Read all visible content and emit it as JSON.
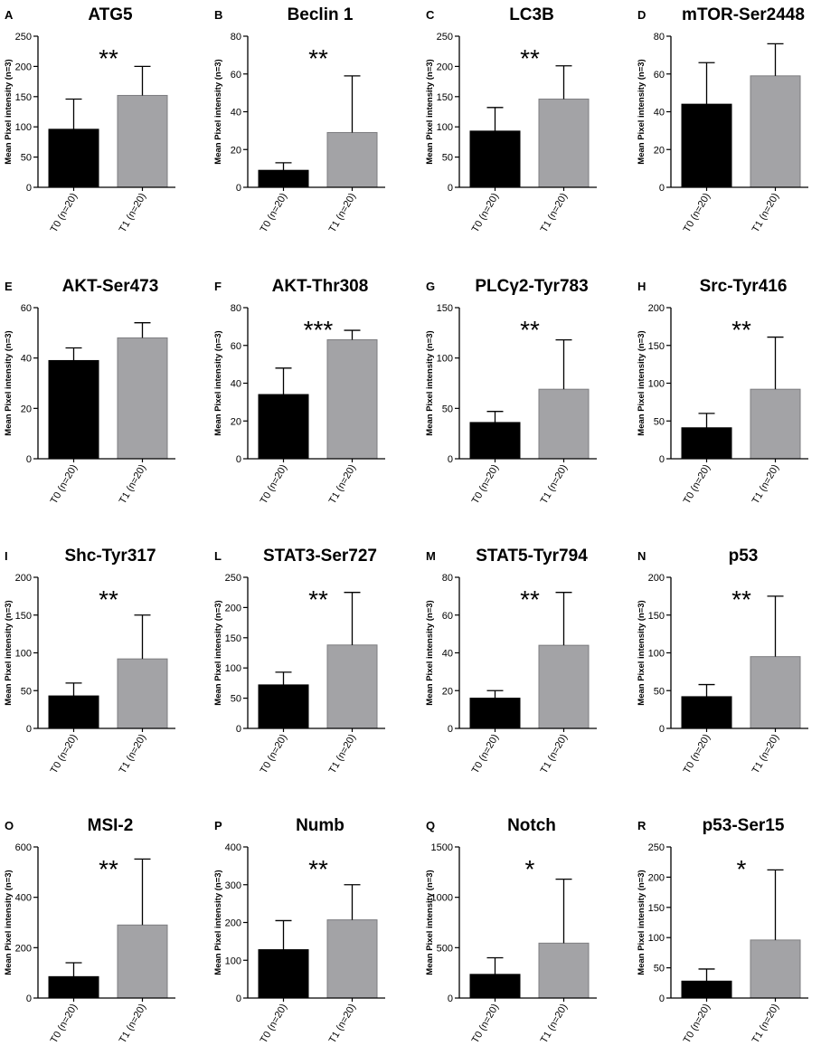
{
  "figure": {
    "panel_count": 16,
    "colors": {
      "T0": "#000000",
      "T1": "#a3a3a6",
      "T1_edge": "#7d7d80"
    }
  },
  "chart_data": [
    {
      "letter": "A",
      "title": "ATG5",
      "type": "bar",
      "ylabel": "Mean Pixel intensity (n=3)",
      "categories": [
        "T0 (n=20)",
        "T1 (n=20)"
      ],
      "values": [
        96,
        152
      ],
      "errors": [
        50,
        48
      ],
      "ylim": [
        0,
        250
      ],
      "yticks": [
        0,
        50,
        100,
        150,
        200,
        250
      ],
      "significance": "**"
    },
    {
      "letter": "B",
      "title": "Beclin 1",
      "type": "bar",
      "ylabel": "Mean Pixel intensity (n=3)",
      "categories": [
        "T0 (n=20)",
        "T1 (n=20)"
      ],
      "values": [
        9,
        29
      ],
      "errors": [
        4,
        30
      ],
      "ylim": [
        0,
        80
      ],
      "yticks": [
        0,
        20,
        40,
        60,
        80
      ],
      "significance": "**"
    },
    {
      "letter": "C",
      "title": "LC3B",
      "type": "bar",
      "ylabel": "Mean Pixel intensity (n=3)",
      "categories": [
        "T0 (n=20)",
        "T1 (n=20)"
      ],
      "values": [
        93,
        146
      ],
      "errors": [
        39,
        55
      ],
      "ylim": [
        0,
        250
      ],
      "yticks": [
        0,
        50,
        100,
        150,
        200,
        250
      ],
      "significance": "**"
    },
    {
      "letter": "D",
      "title": "mTOR-Ser2448",
      "type": "bar",
      "ylabel": "Mean Pixel intensity (n=3)",
      "categories": [
        "T0 (n=20)",
        "T1 (n=20)"
      ],
      "values": [
        44,
        59
      ],
      "errors": [
        22,
        17
      ],
      "ylim": [
        0,
        80
      ],
      "yticks": [
        0,
        20,
        40,
        60,
        80
      ],
      "significance": ""
    },
    {
      "letter": "E",
      "title": "AKT-Ser473",
      "type": "bar",
      "ylabel": "Mean Pixel intensity (n=3)",
      "categories": [
        "T0 (n=20)",
        "T1 (n=20)"
      ],
      "values": [
        39,
        48
      ],
      "errors": [
        5,
        6
      ],
      "ylim": [
        0,
        60
      ],
      "yticks": [
        0,
        20,
        40,
        60
      ],
      "significance": ""
    },
    {
      "letter": "F",
      "title": "AKT-Thr308",
      "type": "bar",
      "ylabel": "Mean Pixel intensity (n=3)",
      "categories": [
        "T0 (n=20)",
        "T1 (n=20)"
      ],
      "values": [
        34,
        63
      ],
      "errors": [
        14,
        5
      ],
      "ylim": [
        0,
        80
      ],
      "yticks": [
        0,
        20,
        40,
        60,
        80
      ],
      "significance": "***"
    },
    {
      "letter": "G",
      "title": "PLCγ2-Tyr783",
      "type": "bar",
      "ylabel": "Mean Pixel intensity (n=3)",
      "categories": [
        "T0 (n=20)",
        "T1 (n=20)"
      ],
      "values": [
        36,
        69
      ],
      "errors": [
        11,
        49
      ],
      "ylim": [
        0,
        150
      ],
      "yticks": [
        0,
        50,
        100,
        150
      ],
      "significance": "**"
    },
    {
      "letter": "H",
      "title": "Src-Tyr416",
      "type": "bar",
      "ylabel": "Mean Pixel intensity (n=3)",
      "categories": [
        "T0 (n=20)",
        "T1 (n=20)"
      ],
      "values": [
        41,
        92
      ],
      "errors": [
        19,
        69
      ],
      "ylim": [
        0,
        200
      ],
      "yticks": [
        0,
        50,
        100,
        150,
        200
      ],
      "significance": "**"
    },
    {
      "letter": "I",
      "title": "Shc-Tyr317",
      "type": "bar",
      "ylabel": "Mean Pixel intensity (n=3)",
      "categories": [
        "T0 (n=20)",
        "T1 (n=20)"
      ],
      "values": [
        43,
        92
      ],
      "errors": [
        17,
        58
      ],
      "ylim": [
        0,
        200
      ],
      "yticks": [
        0,
        50,
        100,
        150,
        200
      ],
      "significance": "**"
    },
    {
      "letter": "L",
      "title": "STAT3-Ser727",
      "type": "bar",
      "ylabel": "Mean Pixel intensity (n=3)",
      "categories": [
        "T0 (n=20)",
        "T1 (n=20)"
      ],
      "values": [
        72,
        138
      ],
      "errors": [
        21,
        87
      ],
      "ylim": [
        0,
        250
      ],
      "yticks": [
        0,
        50,
        100,
        150,
        200,
        250
      ],
      "significance": "**"
    },
    {
      "letter": "M",
      "title": "STAT5-Tyr794",
      "type": "bar",
      "ylabel": "Mean Pixel intensity (n=3)",
      "categories": [
        "T0 (n=20)",
        "T1 (n=20)"
      ],
      "values": [
        16,
        44
      ],
      "errors": [
        4,
        28
      ],
      "ylim": [
        0,
        80
      ],
      "yticks": [
        0,
        20,
        40,
        60,
        80
      ],
      "significance": "**"
    },
    {
      "letter": "N",
      "title": "p53",
      "type": "bar",
      "ylabel": "Mean Pixel intensity (n=3)",
      "categories": [
        "T0 (n=20)",
        "T1 (n=20)"
      ],
      "values": [
        42,
        95
      ],
      "errors": [
        16,
        80
      ],
      "ylim": [
        0,
        200
      ],
      "yticks": [
        0,
        50,
        100,
        150,
        200
      ],
      "significance": "**"
    },
    {
      "letter": "O",
      "title": "MSI-2",
      "type": "bar",
      "ylabel": "Mean Pixel intensity (n=3)",
      "categories": [
        "T0 (n=20)",
        "T1 (n=20)"
      ],
      "values": [
        85,
        290
      ],
      "errors": [
        55,
        262
      ],
      "ylim": [
        0,
        600
      ],
      "yticks": [
        0,
        200,
        400,
        600
      ],
      "significance": "**"
    },
    {
      "letter": "P",
      "title": "Numb",
      "type": "bar",
      "ylabel": "Mean Pixel intensity (n=3)",
      "categories": [
        "T0 (n=20)",
        "T1 (n=20)"
      ],
      "values": [
        128,
        207
      ],
      "errors": [
        77,
        93
      ],
      "ylim": [
        0,
        400
      ],
      "yticks": [
        0,
        100,
        200,
        300,
        400
      ],
      "significance": "**"
    },
    {
      "letter": "Q",
      "title": "Notch",
      "type": "bar",
      "ylabel": "Mean Pixel intensity (n=3)",
      "categories": [
        "T0 (n=20)",
        "T1 (n=20)"
      ],
      "values": [
        235,
        545
      ],
      "errors": [
        165,
        635
      ],
      "ylim": [
        0,
        1500
      ],
      "yticks": [
        0,
        500,
        1000,
        1500
      ],
      "significance": "*"
    },
    {
      "letter": "R",
      "title": "p53-Ser15",
      "type": "bar",
      "ylabel": "Mean Pixel intensity (n=3)",
      "categories": [
        "T0 (n=20)",
        "T1 (n=20)"
      ],
      "values": [
        28,
        96
      ],
      "errors": [
        20,
        116
      ],
      "ylim": [
        0,
        250
      ],
      "yticks": [
        0,
        50,
        100,
        150,
        200,
        250
      ],
      "significance": "*"
    }
  ]
}
